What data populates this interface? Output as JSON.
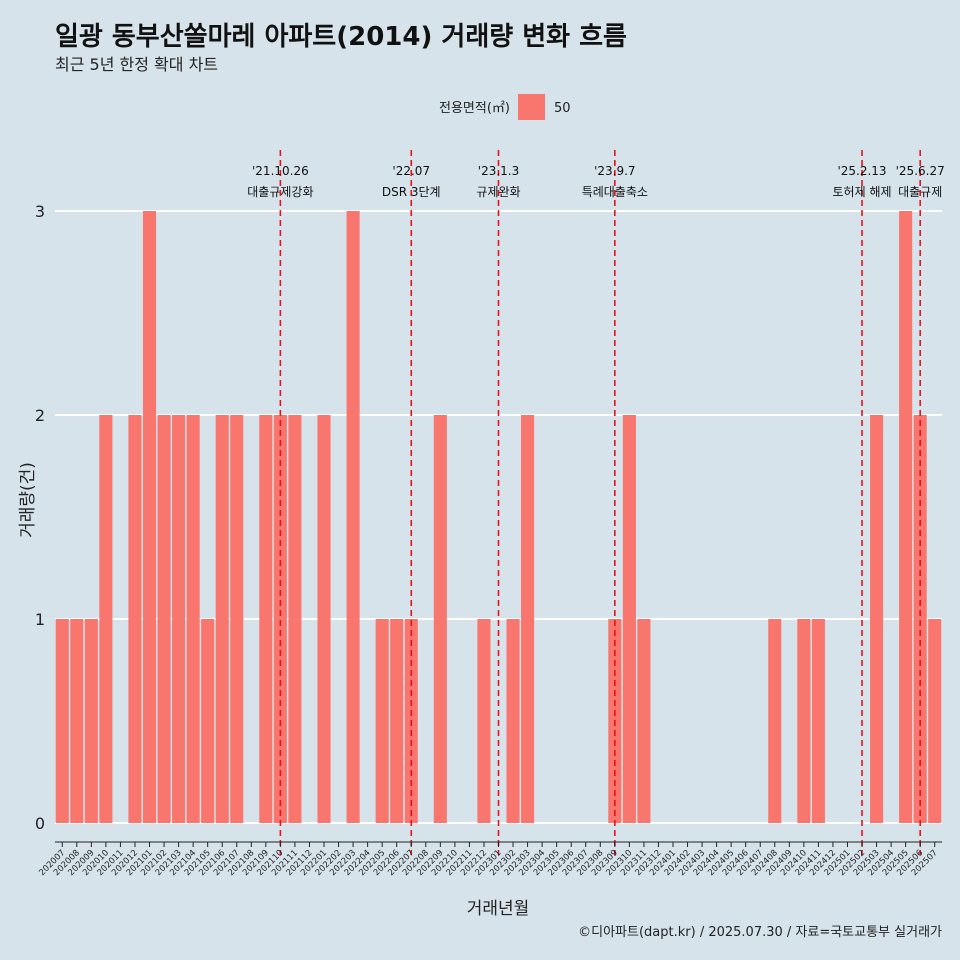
{
  "title": "일광 동부산쏠마레 아파트(2014) 거래량 변화 흐름",
  "subtitle": "최근 5년 한정 확대 차트",
  "caption": "©디아파트(dapt.kr) / 2025.07.30 / 자료=국토교통부 실거래가",
  "legend": {
    "title": "전용면적(㎡)",
    "entries": [
      {
        "label": "50",
        "color": "#f8766d"
      }
    ],
    "position": "top"
  },
  "chart_data": {
    "type": "bar",
    "xlabel": "거래년월",
    "ylabel": "거래량(건)",
    "ylim": [
      0,
      3
    ],
    "yticks": [
      0,
      1,
      2,
      3
    ],
    "grid": true,
    "bar_color": "#f8766d",
    "categories": [
      "202007",
      "202008",
      "202009",
      "202010",
      "202011",
      "202012",
      "202101",
      "202102",
      "202103",
      "202104",
      "202105",
      "202106",
      "202107",
      "202108",
      "202109",
      "202110",
      "202111",
      "202112",
      "202201",
      "202202",
      "202203",
      "202204",
      "202205",
      "202206",
      "202207",
      "202208",
      "202209",
      "202210",
      "202211",
      "202212",
      "202301",
      "202302",
      "202303",
      "202304",
      "202305",
      "202306",
      "202307",
      "202308",
      "202309",
      "202310",
      "202311",
      "202312",
      "202401",
      "202402",
      "202403",
      "202404",
      "202405",
      "202406",
      "202407",
      "202408",
      "202409",
      "202410",
      "202411",
      "202412",
      "202501",
      "202502",
      "202503",
      "202504",
      "202505",
      "202506",
      "202507"
    ],
    "series": [
      {
        "name": "50",
        "values": [
          1,
          1,
          1,
          2,
          0,
          2,
          3,
          2,
          2,
          2,
          1,
          2,
          2,
          0,
          2,
          2,
          2,
          0,
          2,
          0,
          3,
          0,
          1,
          1,
          1,
          0,
          2,
          0,
          0,
          1,
          0,
          1,
          2,
          0,
          0,
          0,
          0,
          0,
          1,
          2,
          1,
          0,
          0,
          0,
          0,
          0,
          0,
          0,
          0,
          1,
          0,
          1,
          1,
          0,
          0,
          0,
          2,
          0,
          3,
          2,
          1
        ]
      }
    ],
    "events": [
      {
        "date": "'21.10.26",
        "label": "대출규제강화",
        "x": "202110"
      },
      {
        "date": "'22.07",
        "label": "DSR 3단계",
        "x": "202207"
      },
      {
        "date": "'23.1.3",
        "label": "규제완화",
        "x": "202301"
      },
      {
        "date": "'23.9.7",
        "label": "특례대출축소",
        "x": "202309"
      },
      {
        "date": "'25.2.13",
        "label": "토허제 해제",
        "x": "202502"
      },
      {
        "date": "'25.6.27",
        "label": "대출규제",
        "x": "202506"
      }
    ]
  }
}
